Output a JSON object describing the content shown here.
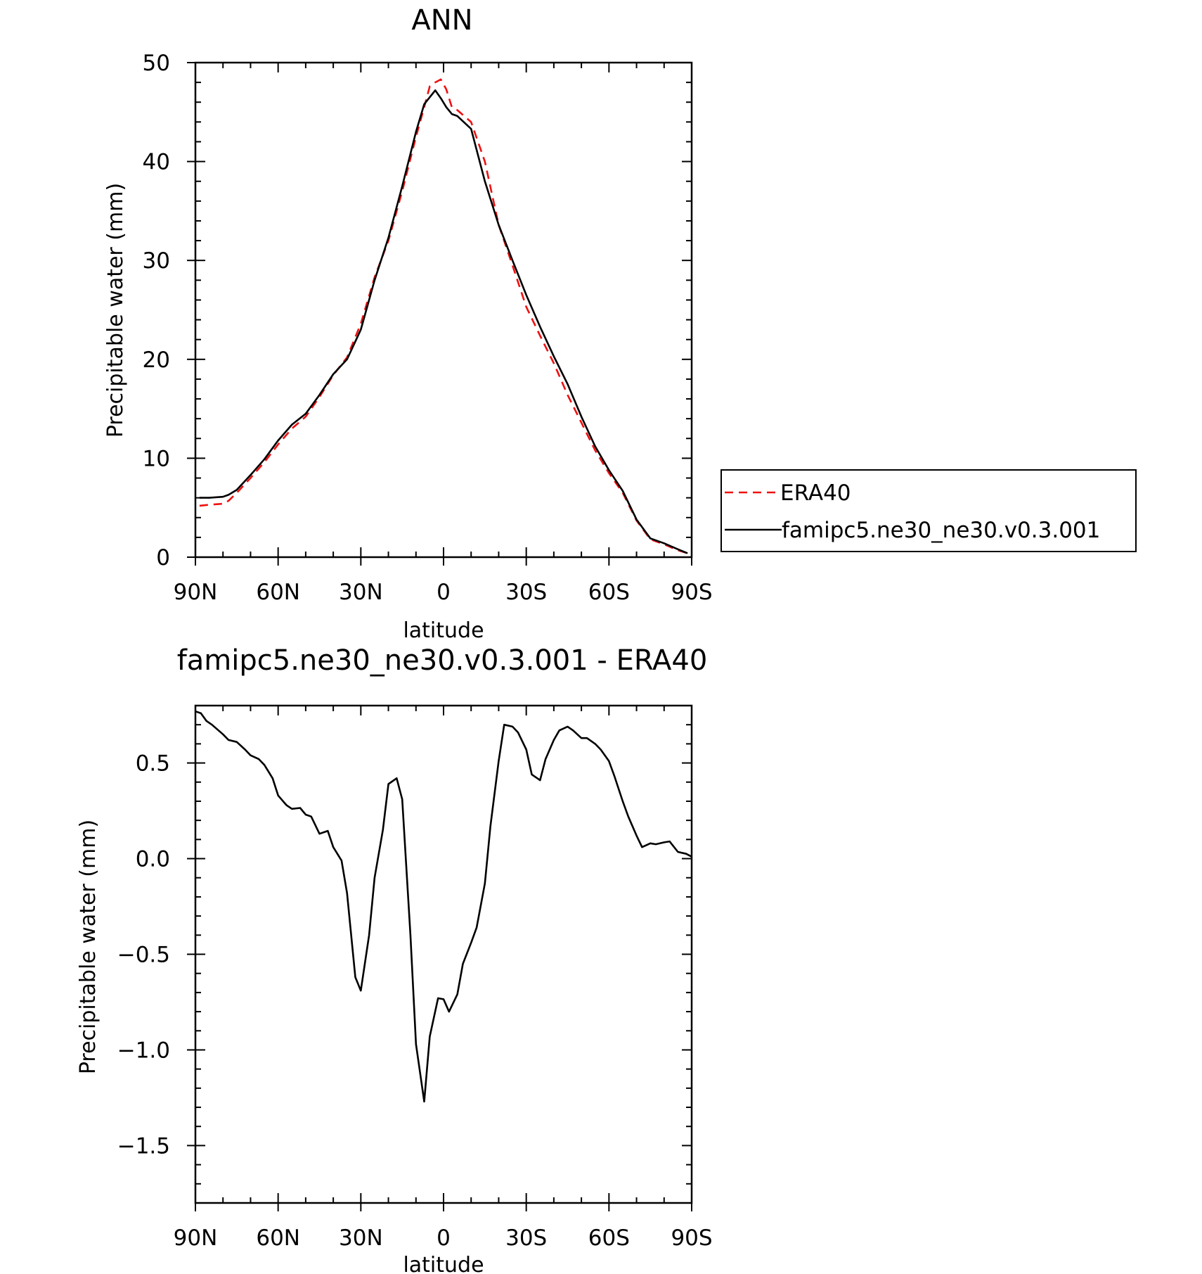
{
  "figure": {
    "colors": {
      "background": "#ffffff",
      "model_line": "#000000",
      "obs_line": "#ee1111"
    }
  },
  "chart_data": [
    {
      "type": "line",
      "title": "ANN",
      "xlabel": "latitude",
      "ylabel": "Precipitable water (mm)",
      "xlim": [
        90,
        -90
      ],
      "ylim": [
        0,
        50
      ],
      "x_ticks": [
        {
          "value": 90,
          "label": "90N"
        },
        {
          "value": 60,
          "label": "60N"
        },
        {
          "value": 30,
          "label": "30N"
        },
        {
          "value": 0,
          "label": "0"
        },
        {
          "value": -30,
          "label": "30S"
        },
        {
          "value": -60,
          "label": "60S"
        },
        {
          "value": -90,
          "label": "90S"
        }
      ],
      "y_ticks": [
        {
          "value": 0,
          "label": "0"
        },
        {
          "value": 10,
          "label": "10"
        },
        {
          "value": 20,
          "label": "20"
        },
        {
          "value": 30,
          "label": "30"
        },
        {
          "value": 40,
          "label": "40"
        },
        {
          "value": 50,
          "label": "50"
        }
      ],
      "legend_position": "right",
      "grid": false,
      "series": [
        {
          "name": "ERA40",
          "color": "#ee1111",
          "dash": "dashed",
          "x": [
            88.5,
            85,
            80,
            78,
            75,
            70,
            65,
            60,
            55,
            50,
            45,
            40,
            35,
            30,
            25,
            20,
            15,
            10,
            7,
            5,
            3,
            1,
            -1,
            -3,
            -5,
            -10,
            -15,
            -20,
            -25,
            -30,
            -35,
            -40,
            -45,
            -50,
            -55,
            -60,
            -65,
            -70,
            -75,
            -80,
            -85,
            -88.5
          ],
          "y": [
            5.2,
            5.3,
            5.4,
            5.7,
            6.5,
            8.0,
            9.6,
            11.4,
            13.0,
            14.2,
            16.2,
            18.4,
            20.2,
            23.6,
            28.3,
            32.0,
            37.0,
            42.5,
            45.5,
            47.6,
            48.0,
            48.3,
            47.3,
            45.5,
            45.2,
            44.0,
            40.0,
            33.6,
            29.5,
            25.3,
            22.4,
            19.6,
            16.4,
            13.6,
            10.8,
            8.5,
            6.5,
            3.7,
            1.8,
            1.3,
            0.7,
            0.4
          ]
        },
        {
          "name": "famipc5.ne30_ne30.v0.3.001",
          "color": "#000000",
          "dash": "solid",
          "x": [
            88.5,
            85,
            80,
            78,
            75,
            70,
            65,
            60,
            55,
            50,
            45,
            40,
            35,
            30,
            25,
            20,
            15,
            10,
            7,
            5,
            3,
            1,
            -1,
            -3,
            -5,
            -10,
            -15,
            -20,
            -25,
            -30,
            -35,
            -40,
            -45,
            -50,
            -55,
            -60,
            -65,
            -70,
            -75,
            -80,
            -85,
            -88.5
          ],
          "y": [
            6.0,
            6.0,
            6.1,
            6.3,
            6.8,
            8.3,
            9.9,
            11.8,
            13.4,
            14.5,
            16.4,
            18.5,
            20.0,
            23.0,
            28.0,
            32.3,
            37.5,
            43.0,
            45.8,
            46.5,
            47.2,
            46.4,
            45.5,
            44.8,
            44.6,
            43.3,
            38.0,
            33.6,
            30.0,
            26.5,
            23.3,
            20.3,
            17.5,
            14.2,
            11.2,
            8.8,
            6.7,
            3.8,
            1.9,
            1.4,
            0.8,
            0.4
          ]
        }
      ]
    },
    {
      "type": "line",
      "title": "famipc5.ne30_ne30.v0.3.001 - ERA40",
      "xlabel": "latitude",
      "ylabel": "Precipitable water (mm)",
      "xlim": [
        90,
        -90
      ],
      "ylim": [
        -1.8,
        0.8
      ],
      "x_ticks": [
        {
          "value": 90,
          "label": "90N"
        },
        {
          "value": 60,
          "label": "60N"
        },
        {
          "value": 30,
          "label": "30N"
        },
        {
          "value": 0,
          "label": "0"
        },
        {
          "value": -30,
          "label": "30S"
        },
        {
          "value": -60,
          "label": "60S"
        },
        {
          "value": -90,
          "label": "90S"
        }
      ],
      "y_ticks": [
        {
          "value": 0.5,
          "label": "0.5"
        },
        {
          "value": 0.0,
          "label": "0.0"
        },
        {
          "value": -0.5,
          "label": "-0.5"
        },
        {
          "value": -1.0,
          "label": "-1.0"
        },
        {
          "value": -1.5,
          "label": "-1.5"
        }
      ],
      "grid": false,
      "series": [
        {
          "color": "#000000",
          "dash": "solid",
          "x": [
            90,
            88,
            86,
            84,
            80,
            78,
            75,
            72,
            70,
            67,
            65,
            62,
            60,
            57,
            55,
            52,
            50,
            48,
            45,
            42,
            40,
            37,
            35,
            32,
            30,
            27,
            25,
            22,
            20,
            17,
            15,
            12,
            10,
            7,
            5,
            2,
            0,
            -2,
            -5,
            -7,
            -10,
            -12,
            -15,
            -17,
            -20,
            -22,
            -25,
            -27,
            -30,
            -32,
            -35,
            -37,
            -40,
            -42,
            -45,
            -47,
            -50,
            -52,
            -55,
            -57,
            -60,
            -62,
            -65,
            -67,
            -70,
            -72,
            -75,
            -77,
            -80,
            -82,
            -85,
            -88,
            -90
          ],
          "y": [
            0.77,
            0.76,
            0.72,
            0.7,
            0.65,
            0.62,
            0.61,
            0.57,
            0.54,
            0.52,
            0.49,
            0.42,
            0.33,
            0.28,
            0.26,
            0.265,
            0.23,
            0.22,
            0.13,
            0.145,
            0.06,
            -0.01,
            -0.18,
            -0.62,
            -0.69,
            -0.4,
            -0.1,
            0.15,
            0.39,
            0.42,
            0.31,
            -0.4,
            -0.97,
            -1.27,
            -0.93,
            -0.73,
            -0.735,
            -0.8,
            -0.71,
            -0.55,
            -0.44,
            -0.36,
            -0.13,
            0.17,
            0.51,
            0.7,
            0.69,
            0.66,
            0.57,
            0.44,
            0.41,
            0.52,
            0.62,
            0.67,
            0.69,
            0.67,
            0.63,
            0.63,
            0.6,
            0.57,
            0.51,
            0.43,
            0.3,
            0.22,
            0.12,
            0.06,
            0.08,
            0.075,
            0.085,
            0.09,
            0.035,
            0.025,
            0.01
          ]
        }
      ]
    }
  ]
}
